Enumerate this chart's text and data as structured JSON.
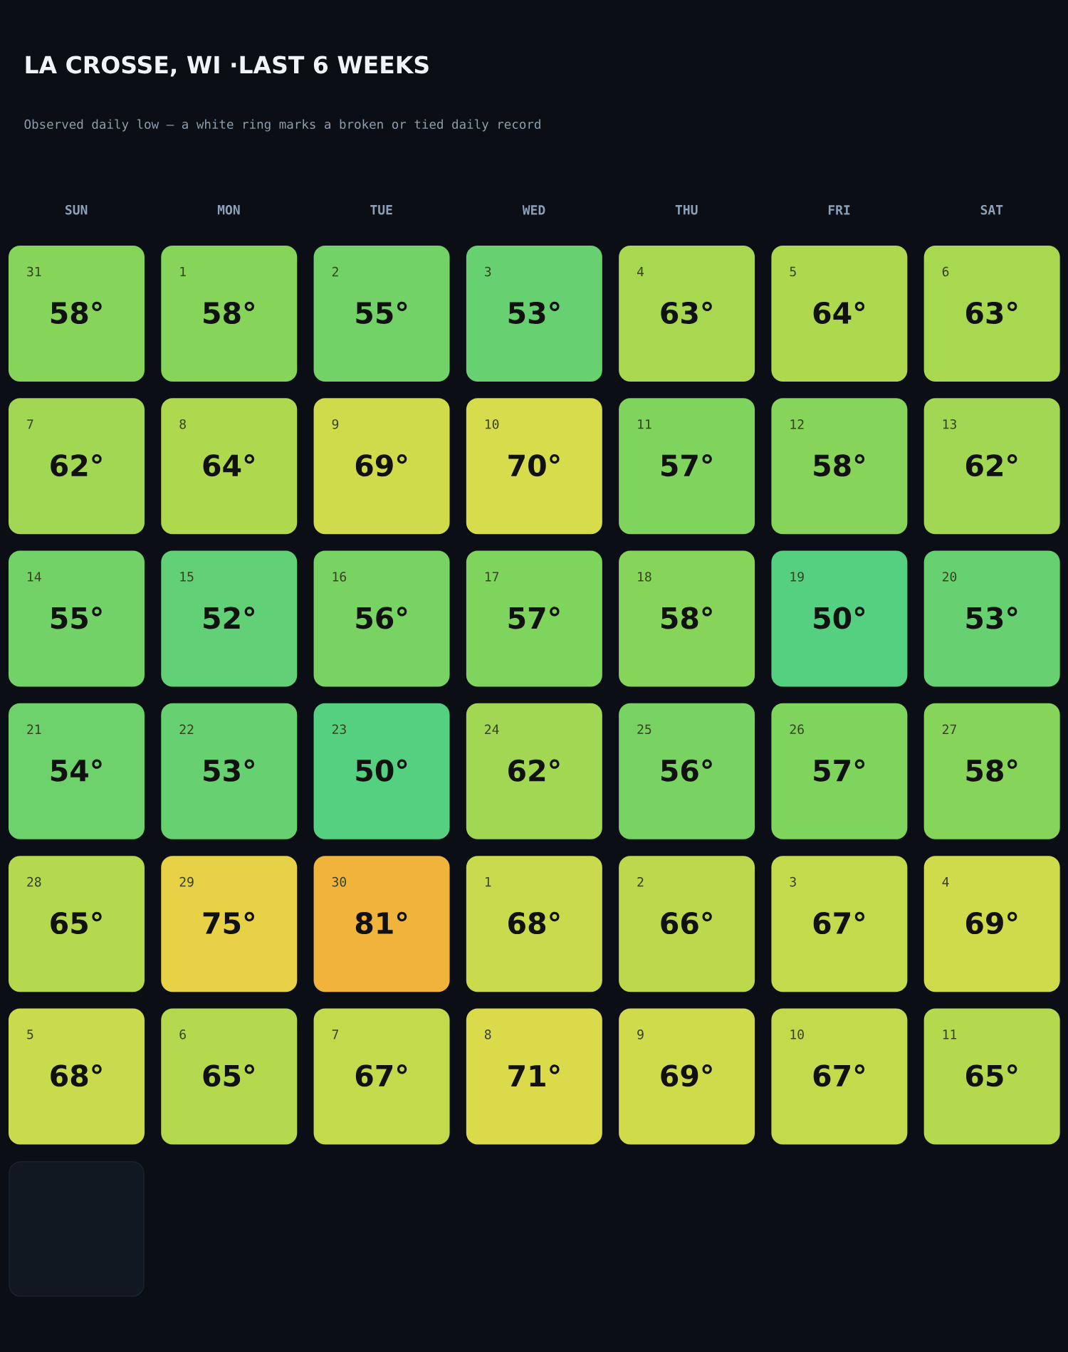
{
  "chart_data": {
    "type": "heatmap",
    "title": "LA CROSSE, WI ·LAST 6 WEEKS",
    "subtitle": "Observed daily low — a white ring marks a broken or tied daily record",
    "categories": [
      "SUN",
      "MON",
      "TUE",
      "WED",
      "THU",
      "FRI",
      "SAT"
    ],
    "y_categories": [
      null,
      null,
      null,
      null,
      null,
      null
    ],
    "cells": [
      [
        58,
        58,
        55,
        53,
        63,
        64,
        63
      ],
      [
        62,
        64,
        69,
        70,
        57,
        58,
        62
      ],
      [
        55,
        52,
        56,
        57,
        58,
        50,
        53
      ],
      [
        54,
        53,
        50,
        62,
        56,
        57,
        58
      ],
      [
        65,
        75,
        81,
        68,
        66,
        67,
        69
      ],
      [
        68,
        65,
        67,
        71,
        69,
        67,
        65
      ]
    ],
    "cell_labels": [
      [
        "58°",
        "58°",
        "55°",
        "53°",
        "63°",
        "64°",
        "63°"
      ],
      [
        "62°",
        "64°",
        "69°",
        "70°",
        "57°",
        "58°",
        "62°"
      ],
      [
        "55°",
        "52°",
        "56°",
        "57°",
        "58°",
        "50°",
        "53°"
      ],
      [
        "54°",
        "53°",
        "50°",
        "62°",
        "56°",
        "57°",
        "58°"
      ],
      [
        "65°",
        "75°",
        "81°",
        "68°",
        "66°",
        "67°",
        "69°"
      ],
      [
        "68°",
        "65°",
        "67°",
        "71°",
        "69°",
        "67°",
        "65°"
      ]
    ],
    "annotations": [
      "31",
      "1",
      "2",
      "3",
      "4",
      "5",
      "6",
      "7",
      "8",
      "9",
      "10",
      "11",
      "12",
      "13",
      "14",
      "15",
      "16",
      "17",
      "18",
      "19",
      "20",
      "21",
      "22",
      "23",
      "24",
      "25",
      "26",
      "27",
      "28",
      "29",
      "30",
      "1",
      "2",
      "3",
      "4",
      "5",
      "6",
      "7",
      "8",
      "9",
      "10",
      "11"
    ]
  }
}
